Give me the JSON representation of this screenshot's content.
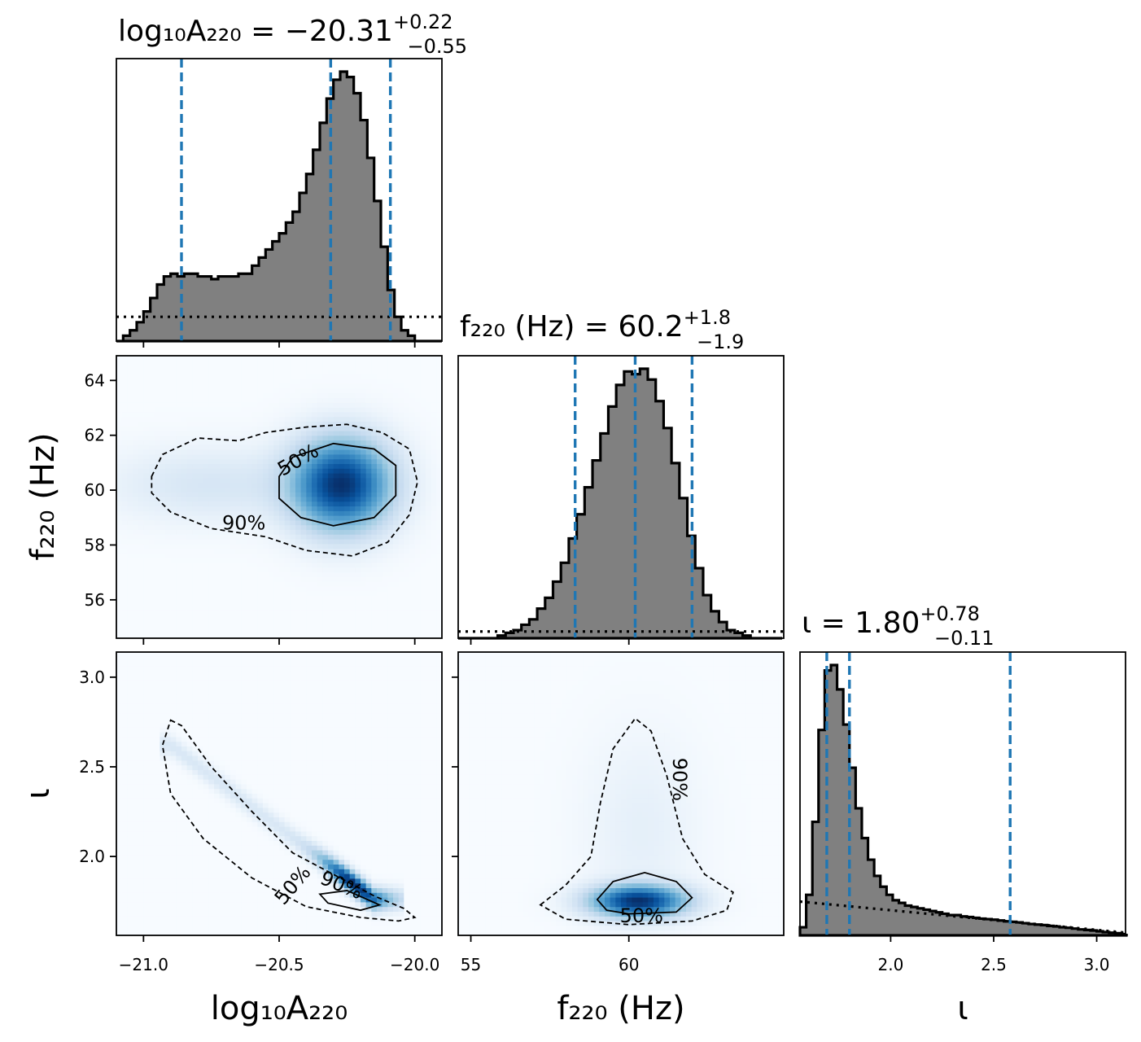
{
  "colors": {
    "hist_fill": "#808080",
    "hist_edge": "#000000",
    "quantile_line": "#1f77b4",
    "density_cmap": "Blues"
  },
  "chart_data": {
    "type": "corner",
    "parameters": [
      {
        "id": "logA",
        "label": "log10A220",
        "range": [
          -21.1,
          -19.9
        ],
        "title": {
          "lhs": "log₁₀A₂₂₀",
          "value": "−20.31",
          "plus": "+0.22",
          "minus": "−0.55"
        },
        "axis_label": "log₁₀A₂₂₀",
        "ticks": [
          -21.0,
          -20.5,
          -20.0
        ],
        "tick_labels": [
          "−21.0",
          "−20.5",
          "−20.0"
        ],
        "quantiles": [
          -20.86,
          -20.31,
          -20.09
        ]
      },
      {
        "id": "f",
        "label": "f220 (Hz)",
        "range": [
          54.6,
          64.9
        ],
        "title": {
          "lhs": "f₂₂₀ (Hz)",
          "value": "60.2",
          "plus": "+1.8",
          "minus": "−1.9"
        },
        "axis_label": "f₂₂₀ (Hz)",
        "ticks": [
          55,
          60
        ],
        "tick_labels": [
          "55",
          "60"
        ],
        "y_ticks": [
          56,
          58,
          60,
          62,
          64
        ],
        "y_tick_labels": [
          "56",
          "58",
          "60",
          "62",
          "64"
        ],
        "quantiles": [
          58.3,
          60.2,
          62.0
        ]
      },
      {
        "id": "iota",
        "label": "iota",
        "range": [
          1.56,
          3.14
        ],
        "title": {
          "lhs": "ι",
          "value": "1.80",
          "plus": "+0.78",
          "minus": "−0.11"
        },
        "axis_label": "ι",
        "ticks": [
          2.0,
          2.5,
          3.0
        ],
        "tick_labels": [
          "2.0",
          "2.5",
          "3.0"
        ],
        "y_ticks": [
          2.0,
          2.5,
          3.0
        ],
        "y_tick_labels": [
          "2.0",
          "2.5",
          "3.0"
        ],
        "quantiles": [
          1.69,
          1.8,
          2.58
        ]
      }
    ],
    "histograms": {
      "logA": {
        "bins_x": [
          -21.1,
          -21.075,
          -21.05,
          -21.025,
          -21.0,
          -20.975,
          -20.95,
          -20.925,
          -20.9,
          -20.875,
          -20.85,
          -20.825,
          -20.8,
          -20.775,
          -20.75,
          -20.725,
          -20.7,
          -20.675,
          -20.65,
          -20.625,
          -20.6,
          -20.575,
          -20.55,
          -20.525,
          -20.5,
          -20.475,
          -20.45,
          -20.425,
          -20.4,
          -20.375,
          -20.35,
          -20.325,
          -20.3,
          -20.275,
          -20.25,
          -20.225,
          -20.2,
          -20.175,
          -20.15,
          -20.125,
          -20.1,
          -20.075,
          -20.05,
          -20.025,
          -20.0,
          -19.975,
          -19.95,
          -19.925
        ],
        "heights": [
          0.0,
          0.02,
          0.04,
          0.07,
          0.11,
          0.16,
          0.21,
          0.24,
          0.25,
          0.24,
          0.25,
          0.25,
          0.24,
          0.24,
          0.23,
          0.24,
          0.24,
          0.24,
          0.25,
          0.25,
          0.28,
          0.31,
          0.34,
          0.37,
          0.4,
          0.44,
          0.48,
          0.55,
          0.62,
          0.71,
          0.81,
          0.9,
          0.97,
          1.0,
          0.98,
          0.92,
          0.82,
          0.68,
          0.52,
          0.35,
          0.19,
          0.09,
          0.04,
          0.02,
          0.0,
          0.0,
          0.0,
          0.0
        ],
        "prior": 0.09
      },
      "f": {
        "bins_x": [
          54.6,
          54.85,
          55.1,
          55.35,
          55.6,
          55.85,
          56.1,
          56.35,
          56.6,
          56.85,
          57.1,
          57.35,
          57.6,
          57.85,
          58.1,
          58.35,
          58.6,
          58.85,
          59.1,
          59.35,
          59.6,
          59.85,
          60.1,
          60.35,
          60.6,
          60.85,
          61.1,
          61.35,
          61.6,
          61.85,
          62.1,
          62.35,
          62.6,
          62.85,
          63.1,
          63.35,
          63.6,
          63.85,
          64.1,
          64.35,
          64.6
        ],
        "heights": [
          0.0,
          0.0,
          0.0,
          0.0,
          0.0,
          0.01,
          0.02,
          0.03,
          0.05,
          0.07,
          0.11,
          0.15,
          0.21,
          0.28,
          0.37,
          0.46,
          0.56,
          0.66,
          0.76,
          0.86,
          0.94,
          0.99,
          0.98,
          1.0,
          0.96,
          0.88,
          0.78,
          0.65,
          0.52,
          0.38,
          0.26,
          0.16,
          0.1,
          0.06,
          0.03,
          0.02,
          0.01,
          0.0,
          0.0,
          0.0
        ],
        "prior": 0.025
      },
      "iota": {
        "bins_x": [
          1.56,
          1.59,
          1.62,
          1.65,
          1.68,
          1.71,
          1.74,
          1.77,
          1.8,
          1.83,
          1.86,
          1.89,
          1.92,
          1.95,
          1.98,
          2.01,
          2.04,
          2.07,
          2.1,
          2.13,
          2.16,
          2.19,
          2.22,
          2.25,
          2.28,
          2.31,
          2.34,
          2.37,
          2.4,
          2.43,
          2.46,
          2.49,
          2.52,
          2.55,
          2.58,
          2.61,
          2.64,
          2.67,
          2.7,
          2.73,
          2.76,
          2.79,
          2.82,
          2.85,
          2.88,
          2.91,
          2.94,
          2.97,
          3.0,
          3.03,
          3.06,
          3.09,
          3.12
        ],
        "heights": [
          0.03,
          0.15,
          0.42,
          0.76,
          0.98,
          1.0,
          0.91,
          0.78,
          0.62,
          0.47,
          0.36,
          0.28,
          0.22,
          0.18,
          0.15,
          0.13,
          0.12,
          0.11,
          0.105,
          0.1,
          0.095,
          0.09,
          0.085,
          0.08,
          0.075,
          0.075,
          0.07,
          0.068,
          0.065,
          0.062,
          0.06,
          0.058,
          0.055,
          0.052,
          0.05,
          0.048,
          0.045,
          0.042,
          0.04,
          0.038,
          0.035,
          0.033,
          0.03,
          0.028,
          0.025,
          0.022,
          0.02,
          0.018,
          0.015,
          0.012,
          0.01,
          0.008
        ],
        "prior": [
          0.125,
          0.01
        ]
      }
    },
    "densities": {
      "f_vs_logA": {
        "x": "logA",
        "y": "f",
        "modes": [
          {
            "cx": -20.27,
            "cy": 60.2,
            "sx": 0.12,
            "sy": 1.1,
            "w": 1.0
          },
          {
            "cx": -20.75,
            "cy": 60.2,
            "sx": 0.25,
            "sy": 0.9,
            "w": 0.12
          }
        ],
        "contour_50": [
          [
            -20.5,
            60.5
          ],
          [
            -20.45,
            61.2
          ],
          [
            -20.3,
            61.7
          ],
          [
            -20.15,
            61.5
          ],
          [
            -20.07,
            60.9
          ],
          [
            -20.07,
            59.8
          ],
          [
            -20.15,
            59.0
          ],
          [
            -20.3,
            58.7
          ],
          [
            -20.42,
            59.0
          ],
          [
            -20.5,
            59.7
          ]
        ],
        "contour_90": [
          [
            -20.97,
            60.5
          ],
          [
            -20.93,
            61.3
          ],
          [
            -20.8,
            61.9
          ],
          [
            -20.65,
            61.8
          ],
          [
            -20.55,
            62.1
          ],
          [
            -20.4,
            62.3
          ],
          [
            -20.25,
            62.4
          ],
          [
            -20.12,
            62.1
          ],
          [
            -20.02,
            61.5
          ],
          [
            -19.99,
            60.3
          ],
          [
            -20.02,
            59.1
          ],
          [
            -20.1,
            58.1
          ],
          [
            -20.23,
            57.6
          ],
          [
            -20.4,
            57.8
          ],
          [
            -20.55,
            58.3
          ],
          [
            -20.75,
            58.6
          ],
          [
            -20.9,
            59.2
          ],
          [
            -20.97,
            59.9
          ]
        ],
        "labels": [
          {
            "text": "50%",
            "x": -20.43,
            "y": 61.1,
            "rot": -30
          },
          {
            "text": "90%",
            "x": -20.63,
            "y": 58.8,
            "rot": 0
          }
        ]
      },
      "iota_vs_logA": {
        "x": "logA",
        "y": "iota",
        "ridge": {
          "x0": -20.9,
          "y0": 2.62,
          "x1": -20.15,
          "y1": 1.76,
          "peak_x": -20.22,
          "peak_y": 1.76,
          "sx": 0.08,
          "sy": 0.04
        },
        "contour_50": [
          [
            -20.35,
            1.79
          ],
          [
            -20.25,
            1.81
          ],
          [
            -20.13,
            1.73
          ],
          [
            -20.2,
            1.7
          ],
          [
            -20.32,
            1.74
          ]
        ],
        "contour_90": [
          [
            -20.9,
            2.76
          ],
          [
            -20.86,
            2.73
          ],
          [
            -20.75,
            2.5
          ],
          [
            -20.6,
            2.25
          ],
          [
            -20.45,
            2.02
          ],
          [
            -20.3,
            1.9
          ],
          [
            -20.15,
            1.78
          ],
          [
            -20.04,
            1.71
          ],
          [
            -20.0,
            1.66
          ],
          [
            -20.06,
            1.64
          ],
          [
            -20.2,
            1.66
          ],
          [
            -20.4,
            1.72
          ],
          [
            -20.6,
            1.88
          ],
          [
            -20.78,
            2.1
          ],
          [
            -20.9,
            2.35
          ],
          [
            -20.93,
            2.62
          ]
        ],
        "labels": [
          {
            "text": "50%",
            "x": -20.45,
            "y": 1.84,
            "rot": -50
          },
          {
            "text": "90%",
            "x": -20.27,
            "y": 1.84,
            "rot": 22
          }
        ]
      },
      "iota_vs_f": {
        "x": "f",
        "y": "iota",
        "modes": [
          {
            "cx": 60.3,
            "cy": 1.75,
            "sx": 1.0,
            "sy": 0.06,
            "w": 1.0
          },
          {
            "cx": 60.4,
            "cy": 2.15,
            "sx": 1.2,
            "sy": 0.35,
            "w": 0.06
          }
        ],
        "contour_50": [
          [
            59.0,
            1.76
          ],
          [
            59.5,
            1.86
          ],
          [
            60.5,
            1.91
          ],
          [
            61.5,
            1.86
          ],
          [
            62.0,
            1.77
          ],
          [
            61.5,
            1.69
          ],
          [
            60.0,
            1.68
          ],
          [
            59.3,
            1.7
          ]
        ],
        "contour_90": [
          [
            57.2,
            1.73
          ],
          [
            58.0,
            1.84
          ],
          [
            58.8,
            2.0
          ],
          [
            59.1,
            2.3
          ],
          [
            59.5,
            2.6
          ],
          [
            60.2,
            2.77
          ],
          [
            60.7,
            2.7
          ],
          [
            61.2,
            2.45
          ],
          [
            61.7,
            2.1
          ],
          [
            62.4,
            1.9
          ],
          [
            63.3,
            1.8
          ],
          [
            63.1,
            1.7
          ],
          [
            62.0,
            1.64
          ],
          [
            60.0,
            1.62
          ],
          [
            58.0,
            1.65
          ]
        ],
        "labels": [
          {
            "text": "50%",
            "x": 60.4,
            "y": 1.67,
            "rot": 0
          },
          {
            "text": "90%",
            "x": 61.6,
            "y": 2.43,
            "rot": 90
          }
        ]
      }
    }
  }
}
